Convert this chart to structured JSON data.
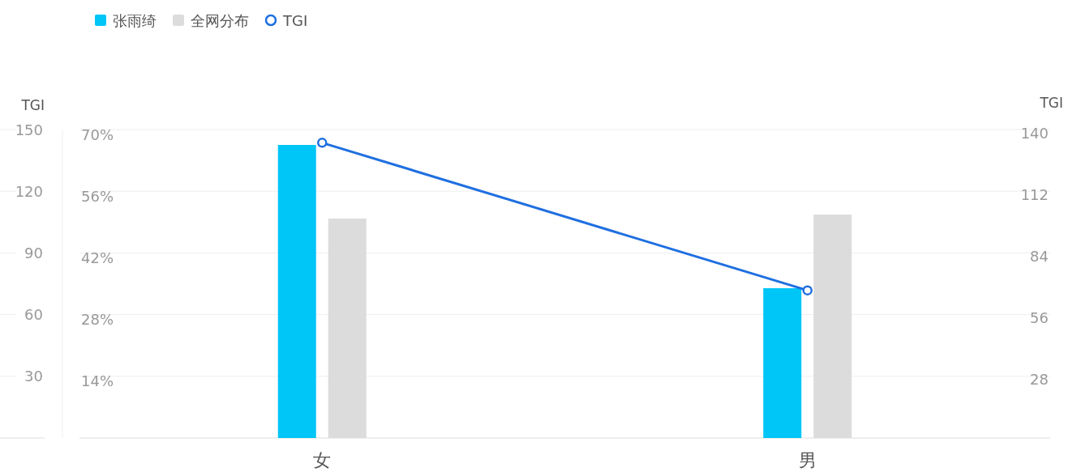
{
  "chart_data": {
    "type": "bar",
    "categories": [
      "女",
      "男"
    ],
    "series": [
      {
        "name": "张雨绮",
        "color": "#00c5f7",
        "values": [
          66.5,
          34.0
        ]
      },
      {
        "name": "全网分布",
        "color": "#dcdcdc",
        "values": [
          49.8,
          50.7
        ]
      },
      {
        "name": "TGI",
        "type": "line",
        "axis": "y2",
        "color": "#1f6fe0",
        "marker": "circle",
        "values": [
          134,
          67
        ]
      }
    ],
    "ylim": [
      0,
      70
    ],
    "yticks": [
      {
        "value": 14,
        "label": "14%"
      },
      {
        "value": 28,
        "label": "28%"
      },
      {
        "value": 42,
        "label": "42%"
      },
      {
        "value": 56,
        "label": "56%"
      },
      {
        "value": 70,
        "label": "70%"
      }
    ],
    "y2label": "TGI",
    "y2lim": [
      0,
      140
    ],
    "y2ticks": [
      28,
      56,
      84,
      112,
      140
    ],
    "y3label": "TGI",
    "y3lim": [
      0,
      150
    ],
    "y3ticks": [
      30,
      60,
      90,
      120,
      150
    ],
    "grid": "y",
    "legend": "top left"
  }
}
